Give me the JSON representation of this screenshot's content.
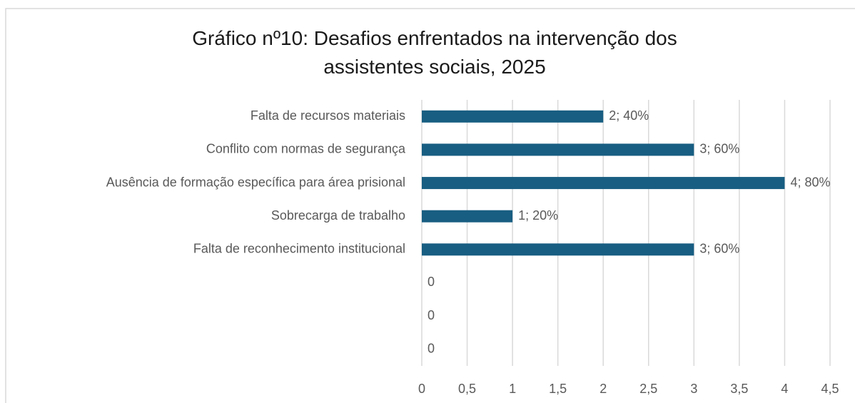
{
  "chart_data": {
    "type": "barh",
    "title": "Gráfico nº10: Desafios enfrentados na intervenção dos assistentes sociais, 2025",
    "categories": [
      "Falta de recursos materiais",
      "Conflito com normas de segurança",
      "Ausência de formação específica para área prisional",
      "Sobrecarga de trabalho",
      "Falta de reconhecimento institucional",
      null,
      null,
      null
    ],
    "values": [
      2,
      3,
      4,
      1,
      3,
      0,
      0,
      0
    ],
    "value_labels": [
      "2; 40%",
      "3; 60%",
      "4; 80%",
      "1; 20%",
      "3; 60%",
      "0",
      "0",
      "0"
    ],
    "color": "#185e82",
    "xlim": [
      0,
      4.5
    ],
    "xticks": [
      0,
      {
        "value": 0.5,
        "label": "0,5"
      },
      1,
      {
        "value": 1.5,
        "label": "1,5"
      },
      2,
      {
        "value": 2.5,
        "label": "2,5"
      },
      3,
      {
        "value": 3.5,
        "label": "3,5"
      },
      4,
      {
        "value": 4.5,
        "label": "4,5"
      }
    ],
    "grid": true
  }
}
